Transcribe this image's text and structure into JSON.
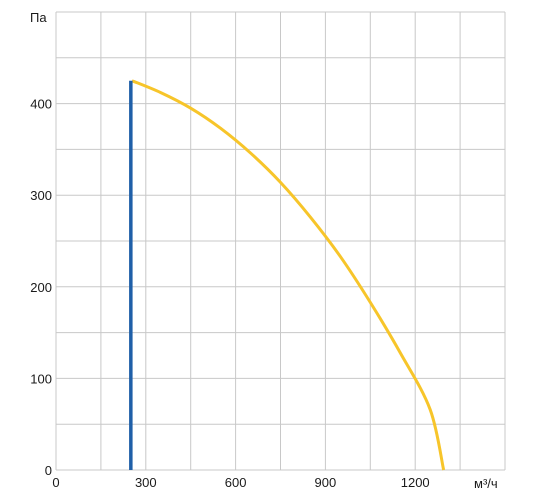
{
  "chart_data": {
    "type": "line",
    "title": "",
    "xlabel": "м³/ч",
    "ylabel": "Па",
    "xlim": [
      0,
      1500
    ],
    "ylim": [
      0,
      500
    ],
    "x_ticks": [
      0,
      300,
      600,
      900,
      1200
    ],
    "y_ticks": [
      0,
      100,
      200,
      300,
      400
    ],
    "grid": true,
    "series": [
      {
        "color": "#f7c52a",
        "points": [
          [
            254,
            425
          ],
          [
            350,
            412
          ],
          [
            450,
            395
          ],
          [
            550,
            373
          ],
          [
            650,
            346
          ],
          [
            750,
            314
          ],
          [
            850,
            276
          ],
          [
            950,
            233
          ],
          [
            1050,
            183
          ],
          [
            1150,
            128
          ],
          [
            1250,
            66
          ],
          [
            1295,
            0
          ]
        ]
      },
      {
        "color": "#1f5fa8",
        "points": [
          [
            250,
            0
          ],
          [
            250,
            425
          ]
        ]
      }
    ]
  }
}
